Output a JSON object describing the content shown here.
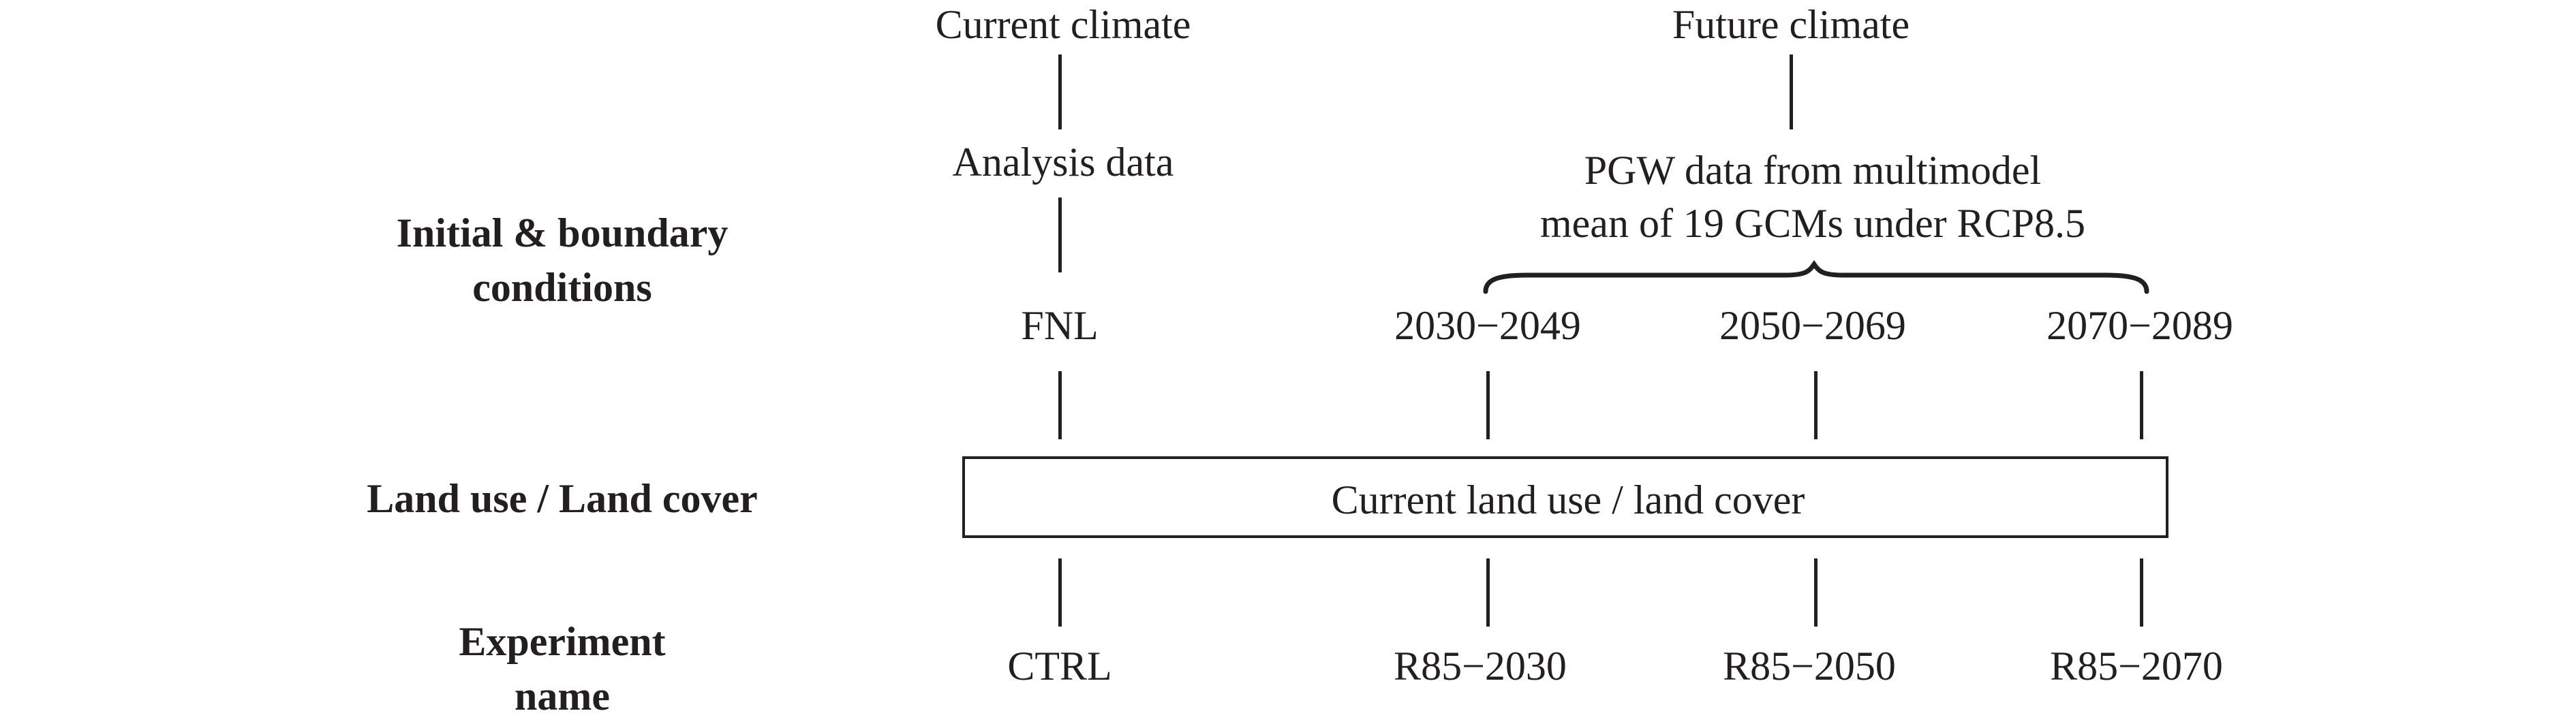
{
  "row_labels": {
    "initial_boundary": {
      "line1": "Initial & boundary",
      "line2": "conditions"
    },
    "land_use": "Land use / Land cover",
    "experiment": {
      "line1": "Experiment",
      "line2": "name"
    }
  },
  "current": {
    "header": "Current climate",
    "data_source": "Analysis data",
    "period": "FNL",
    "experiment": "CTRL"
  },
  "future": {
    "header": "Future climate",
    "data_source_line1": "PGW data from multimodel",
    "data_source_line2": "mean of 19 GCMs under RCP8.5",
    "periods": [
      "2030−2049",
      "2050−2069",
      "2070−2089"
    ],
    "experiments": [
      "R85−2030",
      "R85−2050",
      "R85−2070"
    ]
  },
  "land_box_label": "Current land use / land cover"
}
